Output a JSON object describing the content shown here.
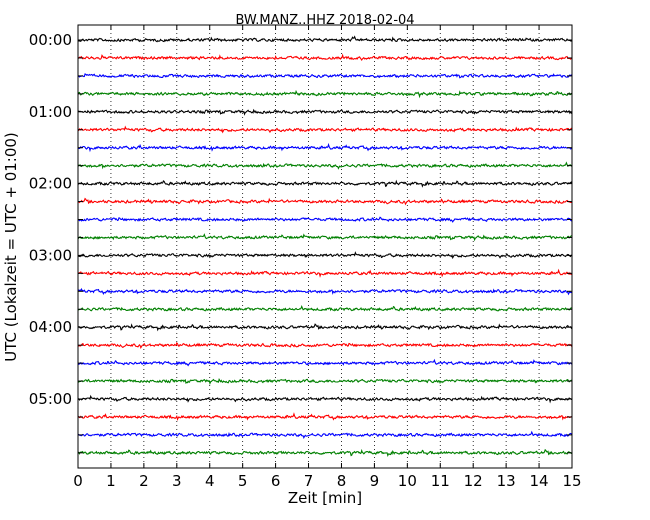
{
  "chart_data": {
    "type": "line",
    "title": "BW.MANZ..HHZ 2018-02-04",
    "xlabel": "Zeit  [min]",
    "ylabel": "UTC (Lokalzeit = UTC + 01:00)",
    "xlim": [
      0,
      15
    ],
    "x_ticks": [
      "0",
      "1",
      "2",
      "3",
      "4",
      "5",
      "6",
      "7",
      "8",
      "9",
      "10",
      "11",
      "12",
      "13",
      "14",
      "15"
    ],
    "y_tick_labels": [
      "00:00",
      "01:00",
      "02:00",
      "03:00",
      "04:00",
      "05:00"
    ],
    "grid": "vertical dotted lines at each minute",
    "trace_colors": [
      "#000000",
      "#ff0000",
      "#0000ff",
      "#008000"
    ],
    "trace_rows": 24,
    "traces_per_hour": 4,
    "minutes_per_trace": 15,
    "description": "Dayplot seismogram: each row is a 15-minute segment of the HHZ channel, colours cycle black, red, blue, green."
  }
}
